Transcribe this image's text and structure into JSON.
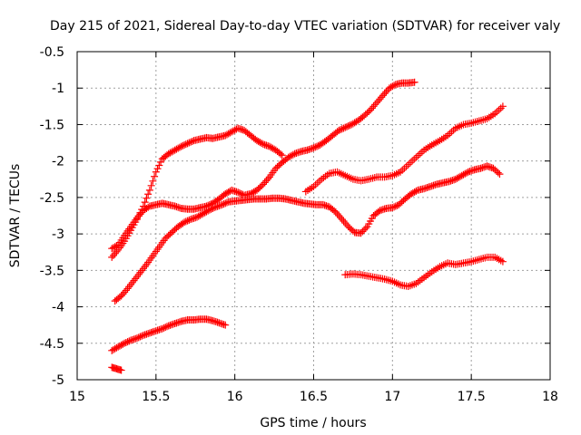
{
  "chart_data": {
    "type": "scatter",
    "title": "Day 215 of 2021, Sidereal Day-to-day VTEC variation (SDTVAR) for receiver valy",
    "xlabel": "GPS time / hours",
    "ylabel": "SDTVAR / TECUs",
    "xlim": [
      15,
      18
    ],
    "ylim": [
      -5,
      -0.5
    ],
    "xticks": [
      "15",
      "15.5",
      "16",
      "16.5",
      "17",
      "17.5",
      "18"
    ],
    "yticks": [
      "-5",
      "-4.5",
      "-4",
      "-3.5",
      "-3",
      "-2.5",
      "-2",
      "-1.5",
      "-1",
      "-0.5"
    ],
    "grid": true,
    "marker": "+",
    "color": "#ff0000",
    "series": [
      {
        "x": [
          15.22,
          15.26,
          15.3,
          15.34,
          15.38,
          15.42,
          15.46,
          15.5,
          15.54,
          15.58,
          15.62,
          15.66,
          15.7,
          15.74,
          15.78,
          15.82,
          15.86,
          15.9,
          15.94
        ],
        "y": [
          -4.6,
          -4.55,
          -4.5,
          -4.46,
          -4.43,
          -4.39,
          -4.36,
          -4.33,
          -4.3,
          -4.26,
          -4.23,
          -4.2,
          -4.18,
          -4.18,
          -4.17,
          -4.17,
          -4.19,
          -4.22,
          -4.25
        ]
      },
      {
        "x": [
          15.22,
          15.25,
          15.28
        ],
        "y": [
          -4.83,
          -4.85,
          -4.87
        ]
      },
      {
        "x": [
          15.24,
          15.28,
          15.32,
          15.36,
          15.4,
          15.44,
          15.48,
          15.52,
          15.56,
          15.6,
          15.64,
          15.68,
          15.72,
          15.76,
          15.8,
          15.84,
          15.88,
          15.92,
          15.96,
          16.0,
          16.04,
          16.08,
          16.12,
          16.16,
          16.2,
          16.24,
          16.28,
          16.32,
          16.36,
          16.4,
          16.44,
          16.48,
          16.52,
          16.56,
          16.6,
          16.64,
          16.68,
          16.72,
          16.76,
          16.8,
          16.84,
          16.88,
          16.92,
          16.96,
          17.0,
          17.04,
          17.08,
          17.12,
          17.16,
          17.2,
          17.24,
          17.28,
          17.32,
          17.36,
          17.4,
          17.44,
          17.48,
          17.52,
          17.56,
          17.6,
          17.64,
          17.68
        ],
        "y": [
          -3.92,
          -3.85,
          -3.75,
          -3.64,
          -3.53,
          -3.42,
          -3.3,
          -3.18,
          -3.06,
          -2.98,
          -2.9,
          -2.84,
          -2.8,
          -2.77,
          -2.72,
          -2.67,
          -2.63,
          -2.6,
          -2.56,
          -2.55,
          -2.54,
          -2.53,
          -2.52,
          -2.52,
          -2.52,
          -2.51,
          -2.51,
          -2.52,
          -2.54,
          -2.56,
          -2.58,
          -2.59,
          -2.6,
          -2.6,
          -2.63,
          -2.7,
          -2.8,
          -2.9,
          -2.98,
          -2.99,
          -2.9,
          -2.75,
          -2.68,
          -2.65,
          -2.64,
          -2.6,
          -2.52,
          -2.45,
          -2.4,
          -2.38,
          -2.35,
          -2.32,
          -2.3,
          -2.28,
          -2.25,
          -2.2,
          -2.15,
          -2.12,
          -2.1,
          -2.07,
          -2.1,
          -2.18
        ]
      },
      {
        "x": [
          15.22,
          15.26,
          15.3,
          15.34,
          15.38,
          15.42,
          15.46,
          15.5,
          15.54,
          15.58,
          15.62,
          15.66,
          15.7,
          15.74,
          15.78,
          15.82,
          15.86,
          15.9,
          15.94,
          15.98,
          16.02,
          16.06,
          16.1,
          16.14,
          16.18,
          16.22,
          16.26,
          16.3,
          16.34,
          16.38,
          16.42,
          16.46,
          16.5,
          16.54,
          16.58,
          16.62,
          16.66,
          16.7,
          16.74,
          16.78,
          16.82,
          16.86,
          16.9,
          16.94,
          16.98,
          17.02,
          17.06,
          17.1,
          17.14,
          17.18,
          17.22,
          17.26,
          17.3,
          17.34,
          17.38,
          17.42,
          17.46,
          17.5,
          17.54,
          17.58,
          17.62,
          17.66,
          17.7
        ],
        "y": [
          -3.2,
          -3.15,
          -3.02,
          -2.9,
          -2.78,
          -2.68,
          -2.62,
          -2.6,
          -2.58,
          -2.6,
          -2.62,
          -2.65,
          -2.66,
          -2.66,
          -2.64,
          -2.62,
          -2.58,
          -2.52,
          -2.45,
          -2.4,
          -2.43,
          -2.47,
          -2.45,
          -2.4,
          -2.32,
          -2.22,
          -2.1,
          -2.02,
          -1.95,
          -1.9,
          -1.87,
          -1.85,
          -1.82,
          -1.78,
          -1.72,
          -1.65,
          -1.58,
          -1.54,
          -1.5,
          -1.45,
          -1.38,
          -1.3,
          -1.2,
          -1.1,
          -1.0,
          -0.95,
          -0.93,
          -0.93,
          -0.92,
          null,
          null,
          null,
          null,
          null,
          null,
          null,
          null,
          null,
          null,
          null,
          null,
          null,
          null
        ]
      },
      {
        "x": [
          15.22,
          15.26,
          15.3,
          15.34,
          15.38,
          15.42,
          15.46,
          15.5,
          15.54,
          15.58,
          15.62,
          15.66,
          15.7,
          15.74,
          15.78,
          15.82,
          15.86,
          15.9,
          15.94,
          15.98,
          16.02,
          16.06,
          16.1,
          16.14,
          16.18,
          16.22,
          16.26,
          16.3
        ],
        "y": [
          -3.32,
          -3.22,
          -3.1,
          -2.95,
          -2.8,
          -2.62,
          -2.4,
          -2.15,
          -1.97,
          -1.9,
          -1.85,
          -1.8,
          -1.76,
          -1.72,
          -1.7,
          -1.68,
          -1.69,
          -1.67,
          -1.65,
          -1.6,
          -1.55,
          -1.58,
          -1.65,
          -1.72,
          -1.77,
          -1.8,
          -1.85,
          -1.92
        ]
      },
      {
        "x": [
          16.45,
          16.5,
          16.55,
          16.6,
          16.65,
          16.7,
          16.75,
          16.8,
          16.85,
          16.9,
          16.95,
          17.0,
          17.05,
          17.1,
          17.15,
          17.2,
          17.25,
          17.3,
          17.35,
          17.4,
          17.45,
          17.5,
          17.55,
          17.6,
          17.65,
          17.7
        ],
        "y": [
          -2.42,
          -2.35,
          -2.25,
          -2.17,
          -2.15,
          -2.2,
          -2.25,
          -2.27,
          -2.25,
          -2.22,
          -2.22,
          -2.2,
          -2.15,
          -2.05,
          -1.95,
          -1.85,
          -1.78,
          -1.72,
          -1.65,
          -1.55,
          -1.5,
          -1.48,
          -1.45,
          -1.42,
          -1.35,
          -1.25
        ]
      },
      {
        "x": [
          16.7,
          16.75,
          16.8,
          16.85,
          16.9,
          16.95,
          17.0,
          17.05,
          17.1,
          17.15,
          17.2,
          17.25,
          17.3,
          17.35,
          17.4,
          17.45,
          17.5,
          17.55,
          17.6,
          17.65,
          17.7
        ],
        "y": [
          -3.56,
          -3.55,
          -3.56,
          -3.58,
          -3.6,
          -3.62,
          -3.65,
          -3.7,
          -3.72,
          -3.68,
          -3.6,
          -3.52,
          -3.45,
          -3.4,
          -3.42,
          -3.4,
          -3.38,
          -3.35,
          -3.32,
          -3.32,
          -3.38
        ]
      }
    ]
  }
}
